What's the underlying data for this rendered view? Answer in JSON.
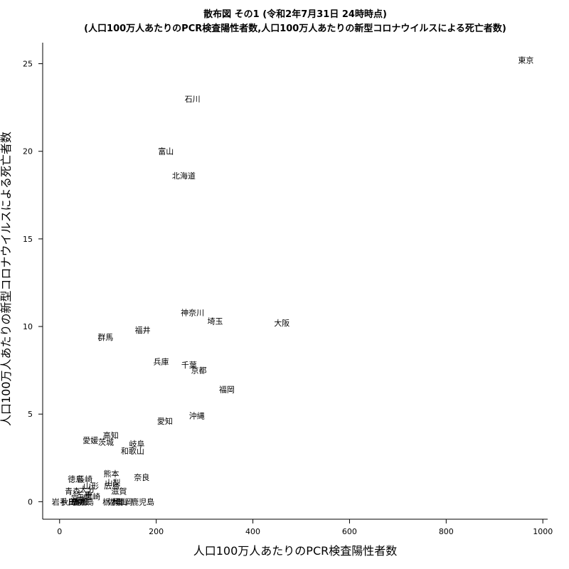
{
  "chart_data": {
    "type": "scatter",
    "title": "散布図 その1 (令和2年7月31日 24時時点)",
    "subtitle": "(人口100万人あたりのPCR検査陽性者数,人口100万人あたりの新型コロナウイルスによる死亡者数)",
    "xlabel": "人口100万人あたりのPCR検査陽性者数",
    "ylabel": "人口100万人あたりの新型コロナウイルスによる死亡者数",
    "xlim": [
      -35,
      1010
    ],
    "ylim": [
      -1.0,
      26.2
    ],
    "xticks": [
      0,
      200,
      400,
      600,
      800,
      1000
    ],
    "yticks": [
      0,
      5,
      10,
      15,
      20,
      25
    ],
    "grid": false,
    "points": [
      {
        "label": "東京",
        "x": 965,
        "y": 25.2
      },
      {
        "label": "石川",
        "x": 275,
        "y": 23.0
      },
      {
        "label": "富山",
        "x": 220,
        "y": 20.0
      },
      {
        "label": "北海道",
        "x": 257,
        "y": 18.6
      },
      {
        "label": "神奈川",
        "x": 275,
        "y": 10.8
      },
      {
        "label": "埼玉",
        "x": 322,
        "y": 10.3
      },
      {
        "label": "大阪",
        "x": 460,
        "y": 10.2
      },
      {
        "label": "福井",
        "x": 172,
        "y": 9.8
      },
      {
        "label": "群馬",
        "x": 95,
        "y": 9.4
      },
      {
        "label": "兵庫",
        "x": 210,
        "y": 8.0
      },
      {
        "label": "千葉",
        "x": 268,
        "y": 7.8
      },
      {
        "label": "京都",
        "x": 288,
        "y": 7.5
      },
      {
        "label": "福岡",
        "x": 346,
        "y": 6.4
      },
      {
        "label": "沖縄",
        "x": 284,
        "y": 4.9
      },
      {
        "label": "愛知",
        "x": 218,
        "y": 4.6
      },
      {
        "label": "高知",
        "x": 106,
        "y": 3.8
      },
      {
        "label": "愛媛",
        "x": 64,
        "y": 3.5
      },
      {
        "label": "茨城",
        "x": 96,
        "y": 3.4
      },
      {
        "label": "岐阜",
        "x": 160,
        "y": 3.3
      },
      {
        "label": "和歌山",
        "x": 151,
        "y": 2.9
      },
      {
        "label": "熊本",
        "x": 107,
        "y": 1.6
      },
      {
        "label": "徳島",
        "x": 33,
        "y": 1.3
      },
      {
        "label": "長崎",
        "x": 52,
        "y": 1.3
      },
      {
        "label": "奈良",
        "x": 170,
        "y": 1.4
      },
      {
        "label": "山梨",
        "x": 110,
        "y": 1.1
      },
      {
        "label": "広島",
        "x": 108,
        "y": 0.9
      },
      {
        "label": "山形",
        "x": 65,
        "y": 0.9
      },
      {
        "label": "大分",
        "x": 57,
        "y": 0.7
      },
      {
        "label": "青森",
        "x": 27,
        "y": 0.6
      },
      {
        "label": "滋賀",
        "x": 123,
        "y": 0.6
      },
      {
        "label": "三重",
        "x": 52,
        "y": 0.4
      },
      {
        "label": "宮崎",
        "x": 68,
        "y": 0.3
      },
      {
        "label": "宮城",
        "x": 40,
        "y": 0.2
      },
      {
        "label": "岩手",
        "x": 0,
        "y": 0.0
      },
      {
        "label": "秋田",
        "x": 18,
        "y": 0.0
      },
      {
        "label": "鳥取",
        "x": 33,
        "y": 0.0
      },
      {
        "label": "島根",
        "x": 45,
        "y": 0.0
      },
      {
        "label": "福島",
        "x": 55,
        "y": 0.0
      },
      {
        "label": "香川",
        "x": 42,
        "y": 0.0
      },
      {
        "label": "佐賀",
        "x": 115,
        "y": 0.0
      },
      {
        "label": "栃木",
        "x": 105,
        "y": 0.0
      },
      {
        "label": "岡山",
        "x": 125,
        "y": 0.0
      },
      {
        "label": "静岡",
        "x": 135,
        "y": 0.0
      },
      {
        "label": "鹿児島",
        "x": 172,
        "y": 0.0
      }
    ]
  }
}
